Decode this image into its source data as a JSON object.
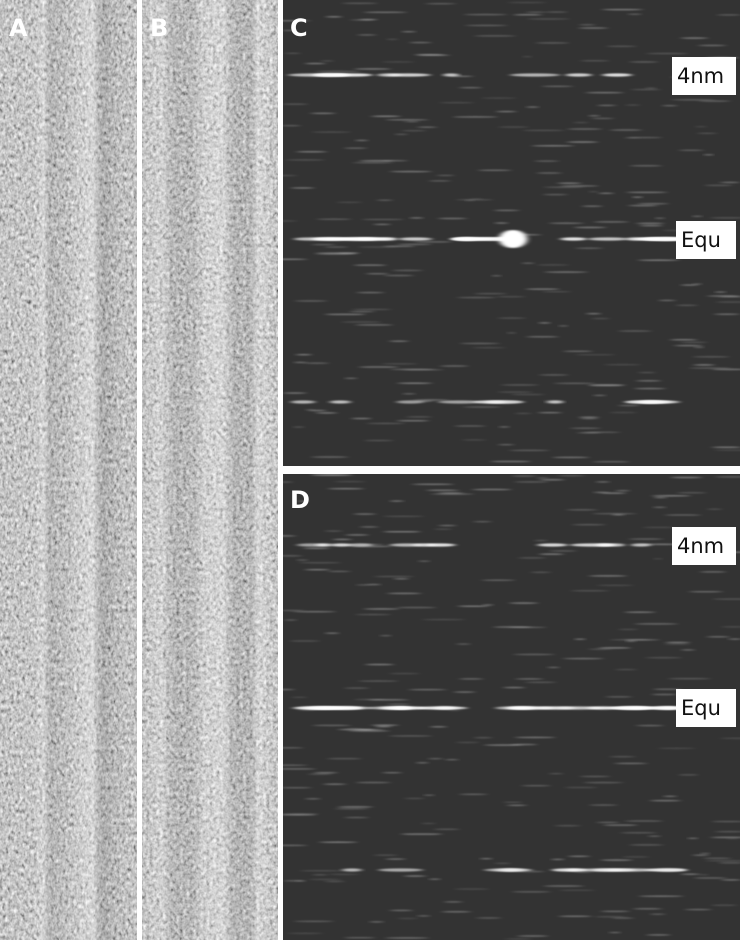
{
  "panels": [
    {
      "label": "A"
    },
    {
      "label": "B"
    },
    {
      "label": "C",
      "annotations": [
        "4nm",
        "Equ"
      ]
    },
    {
      "label": "D",
      "annotations": [
        "4nm",
        "Equ"
      ]
    }
  ]
}
